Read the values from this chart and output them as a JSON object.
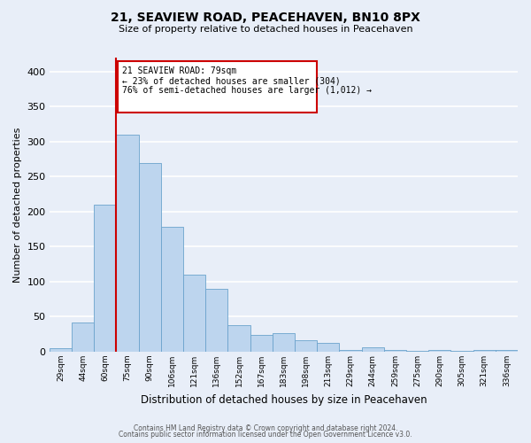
{
  "title": "21, SEAVIEW ROAD, PEACEHAVEN, BN10 8PX",
  "subtitle": "Size of property relative to detached houses in Peacehaven",
  "xlabel": "Distribution of detached houses by size in Peacehaven",
  "ylabel": "Number of detached properties",
  "bar_labels": [
    "29sqm",
    "44sqm",
    "60sqm",
    "75sqm",
    "90sqm",
    "106sqm",
    "121sqm",
    "136sqm",
    "152sqm",
    "167sqm",
    "183sqm",
    "198sqm",
    "213sqm",
    "229sqm",
    "244sqm",
    "259sqm",
    "275sqm",
    "290sqm",
    "305sqm",
    "321sqm",
    "336sqm"
  ],
  "bar_values": [
    5,
    42,
    210,
    310,
    270,
    178,
    110,
    90,
    38,
    24,
    26,
    16,
    13,
    3,
    6,
    3,
    1,
    2,
    1,
    2,
    3
  ],
  "bar_color": "#BDD5EE",
  "bar_edge_color": "#6BA3CC",
  "bg_color": "#E8EEF8",
  "grid_color": "#FFFFFF",
  "vline_color": "#CC0000",
  "vline_index": 3,
  "annotation_line1": "21 SEAVIEW ROAD: 79sqm",
  "annotation_line2": "← 23% of detached houses are smaller (304)",
  "annotation_line3": "76% of semi-detached houses are larger (1,012) →",
  "annotation_box_color": "#CC0000",
  "ylim": [
    0,
    420
  ],
  "yticks": [
    0,
    50,
    100,
    150,
    200,
    250,
    300,
    350,
    400
  ],
  "footer1": "Contains HM Land Registry data © Crown copyright and database right 2024.",
  "footer2": "Contains public sector information licensed under the Open Government Licence v3.0."
}
